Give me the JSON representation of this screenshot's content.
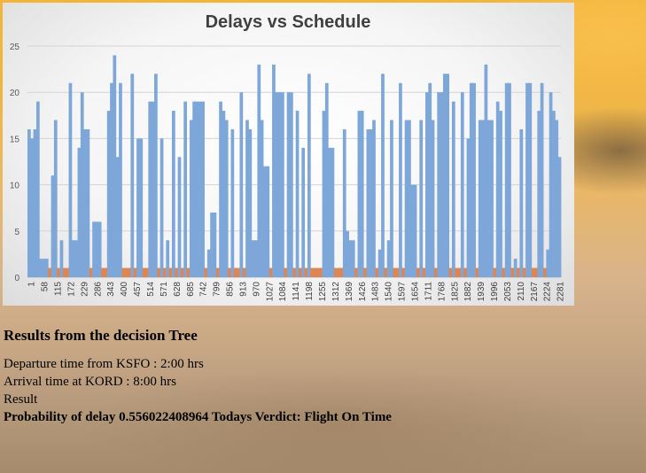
{
  "chart_data": {
    "type": "bar",
    "title": "Delays vs  Schedule",
    "xlabel": "",
    "ylabel": "",
    "ylim": [
      0,
      25
    ],
    "yticks": [
      0,
      5,
      10,
      15,
      20,
      25
    ],
    "grid": true,
    "x_range": [
      1,
      2300
    ],
    "x_tick_labels": [
      "1",
      "58",
      "115",
      "172",
      "229",
      "286",
      "343",
      "400",
      "457",
      "514",
      "571",
      "628",
      "685",
      "742",
      "799",
      "856",
      "913",
      "970",
      "1027",
      "1084",
      "1141",
      "1198",
      "1255",
      "1312",
      "1369",
      "1426",
      "1483",
      "1540",
      "1597",
      "1654",
      "1711",
      "1768",
      "1825",
      "1882",
      "1939",
      "1996",
      "2053",
      "2110",
      "2167",
      "2224",
      "2281"
    ],
    "series": [
      {
        "color": "#7ea7d9",
        "values": [
          16,
          15,
          16,
          19,
          2,
          2,
          2,
          1,
          11,
          17,
          1,
          4,
          1,
          1,
          21,
          4,
          4,
          14,
          20,
          16,
          16,
          1,
          6,
          6,
          6,
          1,
          1,
          18,
          21,
          24,
          13,
          21,
          1,
          1,
          1,
          22,
          1,
          15,
          15,
          1,
          1,
          19,
          19,
          22,
          1,
          15,
          1,
          4,
          1,
          18,
          1,
          13,
          1,
          19,
          1,
          17,
          19,
          19,
          19,
          19,
          1,
          3,
          7,
          7,
          1,
          19,
          18,
          17,
          1,
          16,
          1,
          1,
          20,
          1,
          17,
          16,
          4,
          4,
          23,
          17,
          12,
          12,
          1,
          23,
          20,
          20,
          20,
          1,
          20,
          20,
          1,
          18,
          1,
          14,
          1,
          22,
          1,
          1,
          1,
          1,
          18,
          21,
          14,
          14,
          1,
          1,
          1,
          16,
          5,
          4,
          4,
          1,
          18,
          18,
          1,
          16,
          16,
          17,
          1,
          3,
          22,
          1,
          4,
          17,
          1,
          1,
          21,
          1,
          17,
          17,
          10,
          10,
          1,
          17,
          1,
          20,
          21,
          17,
          1,
          20,
          20,
          22,
          22,
          1,
          19,
          1,
          1,
          20,
          1,
          15,
          21,
          21,
          1,
          17,
          17,
          23,
          17,
          17,
          1,
          19,
          18,
          1,
          21,
          21,
          1,
          2,
          1,
          16,
          1,
          21,
          21,
          1,
          1,
          18,
          21,
          1,
          3,
          20,
          18,
          17,
          13
        ],
        "secondary_color": "#e0854f"
      }
    ]
  },
  "results": {
    "heading": "Results from the decision Tree",
    "departure": "Departure time from KSFO : 2:00 hrs",
    "arrival": "Arrival time at KORD : 8:00 hrs",
    "result_label": "Result",
    "verdict": "Probability of delay 0.556022408964 Todays Verdict: Flight On Time"
  }
}
